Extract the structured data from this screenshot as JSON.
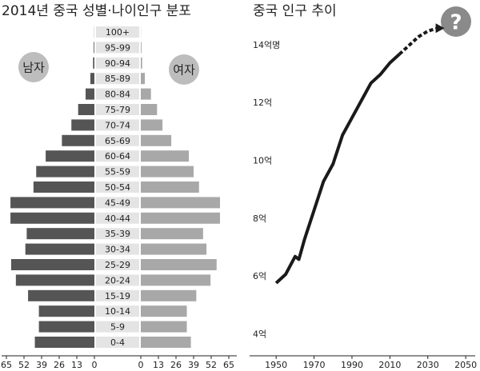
{
  "chart_data": [
    {
      "type": "pyramid",
      "title": "2014년 중국 성별·나이인구 분포",
      "categories": [
        "0-4",
        "5-9",
        "10-14",
        "15-19",
        "20-24",
        "25-29",
        "30-34",
        "35-39",
        "40-44",
        "45-49",
        "50-54",
        "55-59",
        "60-64",
        "65-69",
        "70-74",
        "75-79",
        "80-84",
        "85-89",
        "90-94",
        "95-99",
        "100+"
      ],
      "series": [
        {
          "name": "남자",
          "color": "#555555",
          "values": [
            44,
            41,
            41,
            49,
            58,
            61.5,
            51,
            50,
            62,
            62,
            45,
            43,
            36,
            24,
            17,
            12,
            6.5,
            3,
            1,
            0.5,
            0.1
          ]
        },
        {
          "name": "여자",
          "color": "#a8a8a8",
          "values": [
            37,
            34,
            34,
            41,
            51.5,
            56,
            48.5,
            46,
            58.5,
            58.5,
            43,
            39,
            35.5,
            22.5,
            16,
            12,
            7.5,
            3,
            1,
            0.5,
            0.1
          ]
        }
      ],
      "xlim": [
        0,
        65
      ],
      "xticks": [
        0,
        13,
        26,
        39,
        52,
        65
      ]
    },
    {
      "type": "line",
      "title": "중국 인구 추이",
      "annotation": "?",
      "series": [
        {
          "color": "#1a1a1a",
          "dashed": false,
          "x": [
            1950,
            1955,
            1960,
            1962,
            1965,
            1970,
            1975,
            1980,
            1985,
            1990,
            1995,
            2000,
            2005,
            2010,
            2015
          ],
          "values": [
            5.78,
            6.08,
            6.7,
            6.6,
            7.3,
            8.3,
            9.3,
            9.9,
            10.9,
            11.5,
            12.1,
            12.7,
            13.0,
            13.4,
            13.7
          ]
        },
        {
          "color": "#1a1a1a",
          "dashed": true,
          "x": [
            2015,
            2020,
            2025,
            2030,
            2035
          ],
          "values": [
            13.7,
            14.0,
            14.3,
            14.5,
            14.6
          ]
        }
      ],
      "xlim": [
        1936,
        2055
      ],
      "xticks": [
        1950,
        1970,
        1990,
        2010,
        2030,
        2050
      ],
      "ylim": [
        3.4,
        15.3
      ],
      "yticks": [
        {
          "value": 4,
          "label": "4억"
        },
        {
          "value": 6,
          "label": "6억"
        },
        {
          "value": 8,
          "label": "8억"
        },
        {
          "value": 10,
          "label": "10억"
        },
        {
          "value": 12,
          "label": "12억"
        },
        {
          "value": 14,
          "label": "14억명"
        }
      ]
    }
  ]
}
